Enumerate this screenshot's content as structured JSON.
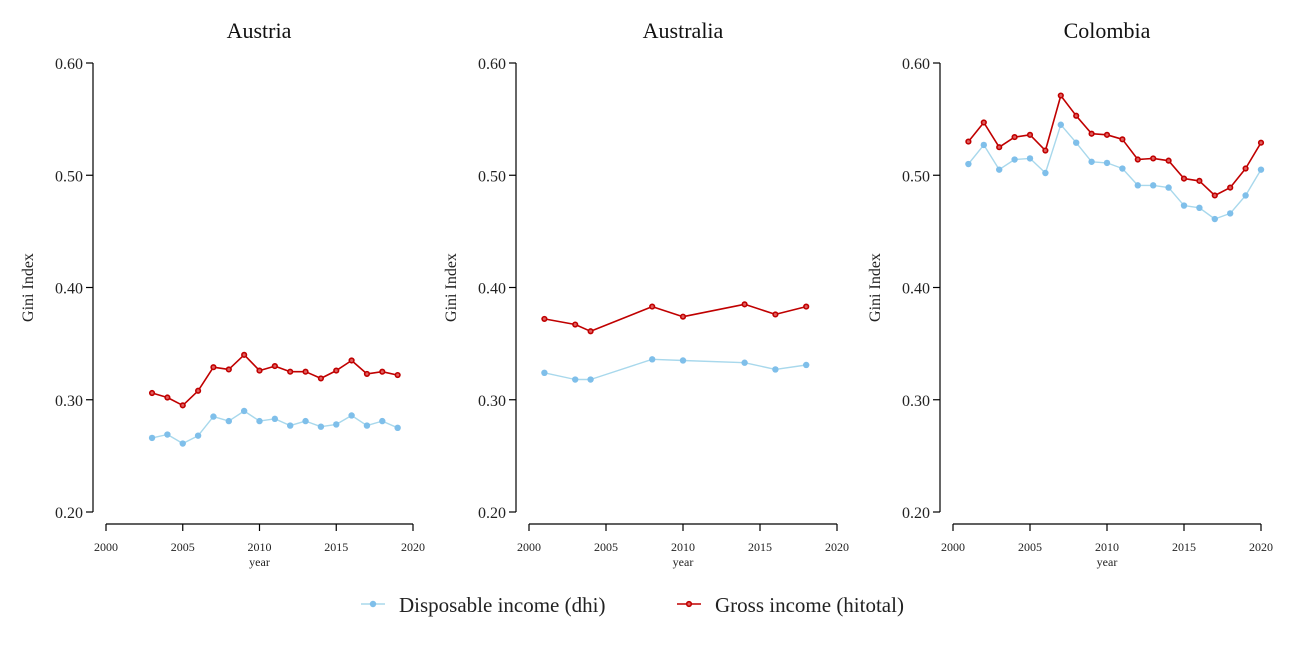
{
  "chart_data": {
    "type": "line",
    "legend": {
      "placement": "bottom-center",
      "entries": [
        {
          "name": "Disposable income (dhi)",
          "color": "#7fbfea",
          "line_color": "#a8d8ec",
          "marker": "filled-circle"
        },
        {
          "name": "Gross income (hitotal)",
          "color": "#c00000",
          "line_color": "#c00000",
          "marker": "hollow-circle"
        }
      ]
    },
    "panels": [
      {
        "title": "Austria",
        "ylabel": "Gini Index",
        "xlabel": "year",
        "ylim": [
          0.2,
          0.6
        ],
        "yticks": [
          "0.20",
          "0.30",
          "0.40",
          "0.50",
          "0.60"
        ],
        "xlim": [
          2000,
          2020
        ],
        "xticks": [
          "2000",
          "2005",
          "2010",
          "2015",
          "2020"
        ],
        "series": [
          {
            "name": "Disposable income (dhi)",
            "x": [
              2003,
              2004,
              2005,
              2006,
              2007,
              2008,
              2009,
              2010,
              2011,
              2012,
              2013,
              2014,
              2015,
              2016,
              2017,
              2018,
              2019
            ],
            "y": [
              0.266,
              0.269,
              0.261,
              0.268,
              0.285,
              0.281,
              0.29,
              0.281,
              0.283,
              0.277,
              0.281,
              0.276,
              0.278,
              0.286,
              0.277,
              0.281,
              0.275
            ]
          },
          {
            "name": "Gross income (hitotal)",
            "x": [
              2003,
              2004,
              2005,
              2006,
              2007,
              2008,
              2009,
              2010,
              2011,
              2012,
              2013,
              2014,
              2015,
              2016,
              2017,
              2018,
              2019
            ],
            "y": [
              0.306,
              0.302,
              0.295,
              0.308,
              0.329,
              0.327,
              0.34,
              0.326,
              0.33,
              0.325,
              0.325,
              0.319,
              0.326,
              0.335,
              0.323,
              0.325,
              0.322
            ]
          }
        ]
      },
      {
        "title": "Australia",
        "ylabel": "Gini Index",
        "xlabel": "year",
        "ylim": [
          0.2,
          0.6
        ],
        "yticks": [
          "0.20",
          "0.30",
          "0.40",
          "0.50",
          "0.60"
        ],
        "xlim": [
          2000,
          2020
        ],
        "xticks": [
          "2000",
          "2005",
          "2010",
          "2015",
          "2020"
        ],
        "series": [
          {
            "name": "Disposable income (dhi)",
            "x": [
              2001,
              2003,
              2004,
              2008,
              2010,
              2014,
              2016,
              2018
            ],
            "y": [
              0.324,
              0.318,
              0.318,
              0.336,
              0.335,
              0.333,
              0.327,
              0.331
            ]
          },
          {
            "name": "Gross income (hitotal)",
            "x": [
              2001,
              2003,
              2004,
              2008,
              2010,
              2014,
              2016,
              2018
            ],
            "y": [
              0.372,
              0.367,
              0.361,
              0.383,
              0.374,
              0.385,
              0.376,
              0.383
            ]
          }
        ]
      },
      {
        "title": "Colombia",
        "ylabel": "Gini Index",
        "xlabel": "year",
        "ylim": [
          0.2,
          0.6
        ],
        "yticks": [
          "0.20",
          "0.30",
          "0.40",
          "0.50",
          "0.60"
        ],
        "xlim": [
          2000,
          2020
        ],
        "xticks": [
          "2000",
          "2005",
          "2010",
          "2015",
          "2020"
        ],
        "series": [
          {
            "name": "Disposable income (dhi)",
            "x": [
              2001,
              2002,
              2003,
              2004,
              2005,
              2006,
              2007,
              2008,
              2009,
              2010,
              2011,
              2012,
              2013,
              2014,
              2015,
              2016,
              2017,
              2018,
              2019,
              2020
            ],
            "y": [
              0.51,
              0.527,
              0.505,
              0.514,
              0.515,
              0.502,
              0.545,
              0.529,
              0.512,
              0.511,
              0.506,
              0.491,
              0.491,
              0.489,
              0.473,
              0.471,
              0.461,
              0.466,
              0.482,
              0.505
            ]
          },
          {
            "name": "Gross income (hitotal)",
            "x": [
              2001,
              2002,
              2003,
              2004,
              2005,
              2006,
              2007,
              2008,
              2009,
              2010,
              2011,
              2012,
              2013,
              2014,
              2015,
              2016,
              2017,
              2018,
              2019,
              2020
            ],
            "y": [
              0.53,
              0.547,
              0.525,
              0.534,
              0.536,
              0.522,
              0.571,
              0.553,
              0.537,
              0.536,
              0.532,
              0.514,
              0.515,
              0.513,
              0.497,
              0.495,
              0.482,
              0.489,
              0.506,
              0.529
            ]
          }
        ]
      }
    ]
  }
}
